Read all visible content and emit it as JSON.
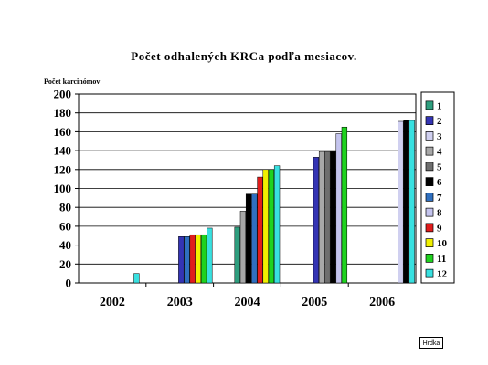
{
  "chart_data": {
    "type": "bar",
    "title": "Počet odhalených KRCa podľa mesiacov.",
    "ylabel": "Počet karcinómov",
    "xlabel": "",
    "ylim": [
      0,
      200
    ],
    "yticks": [
      0,
      20,
      40,
      60,
      80,
      100,
      120,
      140,
      160,
      180,
      200
    ],
    "grid": true,
    "legend_position": "right",
    "categories": [
      "2002",
      "2003",
      "2004",
      "2005",
      "2006"
    ],
    "series": [
      {
        "name": "1",
        "color": "#2e9e7e",
        "values": [
          null,
          null,
          59,
          null,
          null
        ]
      },
      {
        "name": "2",
        "color": "#3434b4",
        "values": [
          null,
          49,
          null,
          133,
          null
        ]
      },
      {
        "name": "3",
        "color": "#d0d0f0",
        "values": [
          null,
          null,
          null,
          null,
          171
        ]
      },
      {
        "name": "4",
        "color": "#a8a8a8",
        "values": [
          null,
          null,
          76,
          139,
          null
        ]
      },
      {
        "name": "5",
        "color": "#6e6e6e",
        "values": [
          null,
          null,
          null,
          139,
          null
        ]
      },
      {
        "name": "6",
        "color": "#000000",
        "values": [
          null,
          null,
          94,
          139,
          172
        ]
      },
      {
        "name": "7",
        "color": "#2f6fbf",
        "values": [
          null,
          49,
          94,
          null,
          null
        ]
      },
      {
        "name": "8",
        "color": "#c4c4ee",
        "values": [
          null,
          null,
          null,
          158,
          null
        ]
      },
      {
        "name": "9",
        "color": "#e01c1c",
        "values": [
          null,
          51,
          112,
          null,
          null
        ]
      },
      {
        "name": "10",
        "color": "#f0f000",
        "values": [
          null,
          51,
          120,
          null,
          null
        ]
      },
      {
        "name": "11",
        "color": "#1fd21f",
        "values": [
          null,
          51,
          120,
          165,
          null
        ]
      },
      {
        "name": "12",
        "color": "#38e0e0",
        "values": [
          10,
          58,
          124,
          null,
          172
        ]
      }
    ]
  },
  "footer": {
    "label": "Hrdka"
  }
}
